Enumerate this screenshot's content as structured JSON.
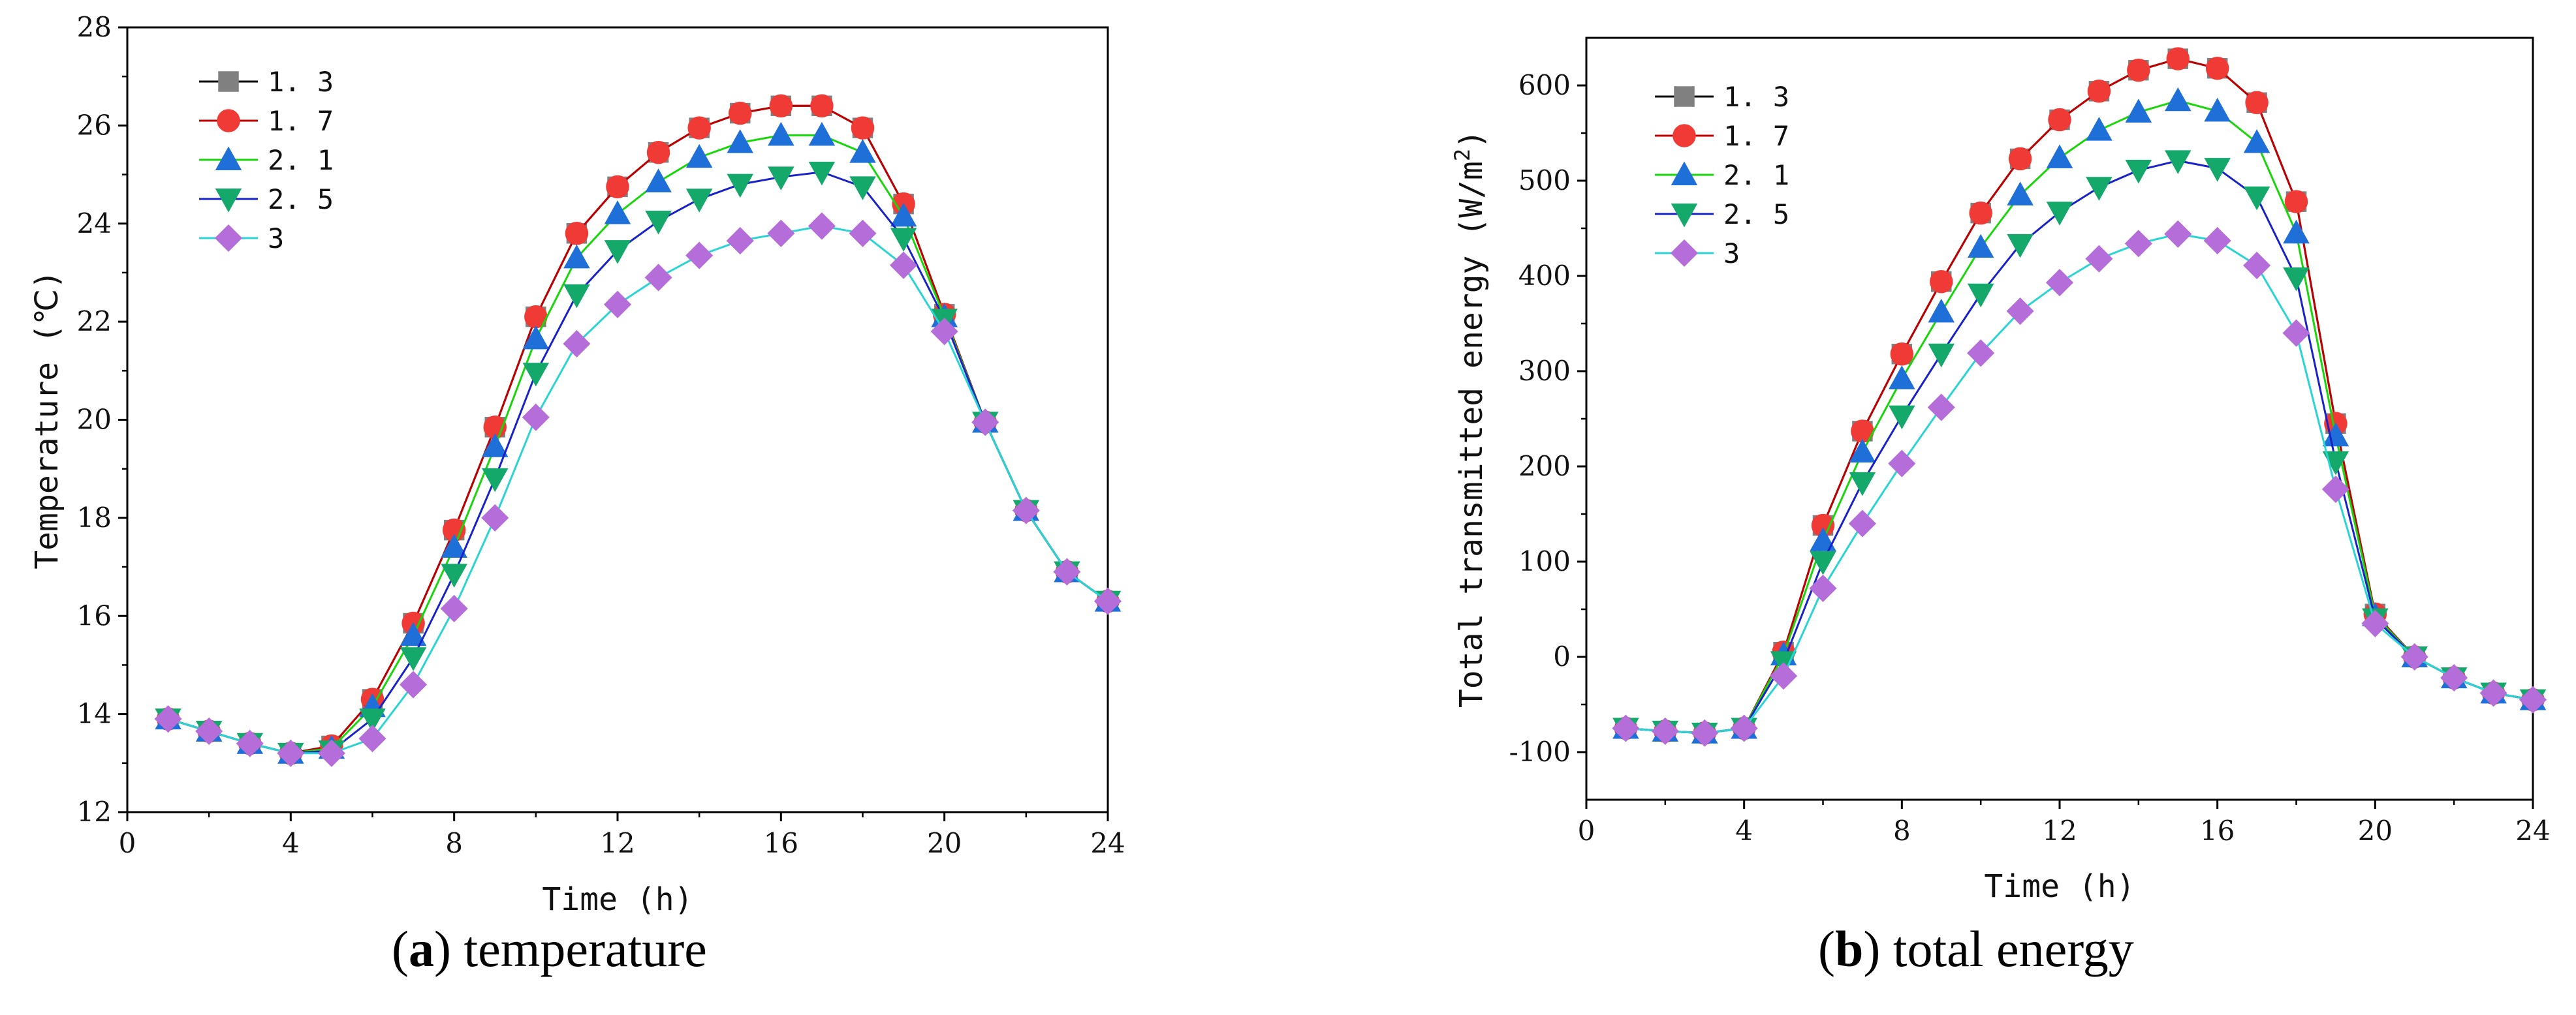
{
  "captions": [
    {
      "letter": "(",
      "tag": "a",
      "rest": ") temperature"
    },
    {
      "letter": "(",
      "tag": "b",
      "rest": ") total energy"
    }
  ],
  "colors": {
    "1.3": "#808080",
    "1.7": "#e8262a",
    "2.1": "#1d6fd6",
    "2.5": "#10a36a",
    "3": "#b46ad8"
  },
  "chart_data": [
    {
      "type": "line",
      "title": "(a) temperature",
      "xlabel": "Time (h)",
      "ylabel": "Temperature (℃)",
      "xlim": [
        0,
        24
      ],
      "ylim": [
        12,
        28
      ],
      "xticks": [
        0,
        4,
        8,
        12,
        16,
        20,
        24
      ],
      "yticks": [
        12,
        14,
        16,
        18,
        20,
        22,
        24,
        26,
        28
      ],
      "legend_position": "top-left",
      "x": [
        1,
        2,
        3,
        4,
        5,
        6,
        7,
        8,
        9,
        10,
        11,
        12,
        13,
        14,
        15,
        16,
        17,
        18,
        19,
        20,
        21,
        22,
        23,
        24
      ],
      "series": [
        {
          "name": "1.3",
          "line_color": "#000000",
          "marker": "square",
          "marker_color": "#808080",
          "values": [
            13.9,
            13.65,
            13.4,
            13.2,
            13.35,
            14.3,
            15.85,
            17.75,
            19.85,
            22.1,
            23.8,
            24.75,
            25.45,
            25.95,
            26.25,
            26.4,
            26.4,
            25.95,
            24.4,
            22.15,
            19.95,
            18.15,
            16.9,
            16.3
          ]
        },
        {
          "name": "1.7",
          "line_color": "#c00000",
          "marker": "circle",
          "marker_color": "#f03a35",
          "values": [
            13.9,
            13.65,
            13.4,
            13.2,
            13.35,
            14.3,
            15.85,
            17.75,
            19.85,
            22.1,
            23.8,
            24.75,
            25.45,
            25.95,
            26.25,
            26.4,
            26.4,
            25.95,
            24.4,
            22.15,
            19.95,
            18.15,
            16.9,
            16.3
          ]
        },
        {
          "name": "2.1",
          "line_color": "#19d60b",
          "marker": "triangle-up",
          "marker_color": "#1f6fd8",
          "values": [
            13.9,
            13.65,
            13.4,
            13.2,
            13.3,
            14.15,
            15.6,
            17.4,
            19.45,
            21.65,
            23.3,
            24.2,
            24.85,
            25.35,
            25.65,
            25.8,
            25.8,
            25.45,
            24.15,
            22.1,
            19.95,
            18.15,
            16.9,
            16.3
          ]
        },
        {
          "name": "2.5",
          "line_color": "#1822c8",
          "marker": "triangle-down",
          "marker_color": "#14a86a",
          "values": [
            13.9,
            13.65,
            13.4,
            13.2,
            13.25,
            13.9,
            15.15,
            16.85,
            18.8,
            20.95,
            22.55,
            23.45,
            24.05,
            24.5,
            24.8,
            24.95,
            25.05,
            24.75,
            23.7,
            22.05,
            19.95,
            18.15,
            16.9,
            16.3
          ]
        },
        {
          "name": "3",
          "line_color": "#2ad4d4",
          "marker": "diamond",
          "marker_color": "#b56dd9",
          "values": [
            13.9,
            13.65,
            13.4,
            13.2,
            13.2,
            13.5,
            14.6,
            16.15,
            18.0,
            20.05,
            21.55,
            22.35,
            22.9,
            23.35,
            23.65,
            23.8,
            23.95,
            23.8,
            23.15,
            21.8,
            19.95,
            18.15,
            16.9,
            16.3
          ]
        }
      ]
    },
    {
      "type": "line",
      "title": "(b) total energy",
      "xlabel": "Time (h)",
      "ylabel": "Total transmitted energy (W/m",
      "ylabel_sup": "2",
      "ylabel_end": ")",
      "xlim": [
        0,
        24
      ],
      "ylim": [
        -150,
        650
      ],
      "xticks": [
        0,
        4,
        8,
        12,
        16,
        20,
        24
      ],
      "yticks": [
        -100,
        0,
        100,
        200,
        300,
        400,
        500,
        600
      ],
      "legend_position": "top-left",
      "x": [
        1,
        2,
        3,
        4,
        5,
        6,
        7,
        8,
        9,
        10,
        11,
        12,
        13,
        14,
        15,
        16,
        17,
        18,
        19,
        20,
        21,
        22,
        23,
        24
      ],
      "series": [
        {
          "name": "1.3",
          "line_color": "#000000",
          "marker": "square",
          "marker_color": "#808080",
          "values": [
            -75,
            -78,
            -80,
            -75,
            5,
            138,
            237,
            318,
            394,
            466,
            523,
            564,
            594,
            616,
            628,
            618,
            582,
            478,
            245,
            45,
            0,
            -22,
            -38,
            -45
          ]
        },
        {
          "name": "1.7",
          "line_color": "#c00000",
          "marker": "circle",
          "marker_color": "#f03a35",
          "values": [
            -75,
            -78,
            -80,
            -75,
            5,
            138,
            237,
            318,
            394,
            466,
            523,
            564,
            594,
            616,
            628,
            618,
            582,
            478,
            245,
            45,
            0,
            -22,
            -38,
            -45
          ]
        },
        {
          "name": "2.1",
          "line_color": "#19d60b",
          "marker": "triangle-up",
          "marker_color": "#1f6fd8",
          "values": [
            -75,
            -78,
            -80,
            -75,
            2,
            122,
            215,
            292,
            362,
            430,
            485,
            524,
            553,
            572,
            584,
            573,
            540,
            445,
            232,
            43,
            0,
            -22,
            -38,
            -45
          ]
        },
        {
          "name": "2.5",
          "line_color": "#1822c8",
          "marker": "triangle-down",
          "marker_color": "#14a86a",
          "values": [
            -75,
            -78,
            -80,
            -75,
            -5,
            100,
            183,
            253,
            318,
            381,
            433,
            467,
            493,
            511,
            521,
            513,
            483,
            398,
            205,
            40,
            0,
            -22,
            -38,
            -45
          ]
        },
        {
          "name": "3",
          "line_color": "#2ad4d4",
          "marker": "diamond",
          "marker_color": "#b56dd9",
          "values": [
            -75,
            -78,
            -80,
            -75,
            -20,
            72,
            140,
            203,
            262,
            319,
            363,
            393,
            418,
            434,
            444,
            437,
            411,
            340,
            176,
            35,
            0,
            -22,
            -38,
            -45
          ]
        }
      ]
    }
  ]
}
